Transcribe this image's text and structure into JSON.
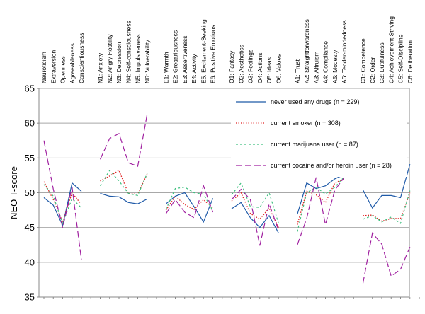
{
  "chart_data": {
    "type": "line",
    "title": "",
    "xlabel": "",
    "ylabel": "NEO T-score",
    "ylim": [
      35,
      65
    ],
    "yticks": [
      35,
      40,
      45,
      50,
      55,
      60,
      65
    ],
    "grid": "horizontal",
    "legend_position": "right",
    "groups": [
      {
        "name": "domains",
        "categories": [
          "Neuroticism",
          "Extraversion",
          "Openness",
          "Agreeableness",
          "Conscientiousness"
        ]
      },
      {
        "name": "neuroticism",
        "categories": [
          "N1: Anxiety",
          "N2: Angry Hostility",
          "N3: Depression",
          "N4: Self-consciousness",
          "N5: Impulsiveness",
          "N6: Vulnerability"
        ]
      },
      {
        "name": "extraversion",
        "categories": [
          "E1: Warmth",
          "E2: Gregariousness",
          "E3: Assertiveness",
          "E4: Activity",
          "E5: Excitement-Seeking",
          "E6: Positive Emotions"
        ]
      },
      {
        "name": "openness",
        "categories": [
          "O1: Fantasy",
          "O2: Aesthetics",
          "O3: Feelings",
          "O4: Actions",
          "O5: Ideas",
          "O6: Values"
        ]
      },
      {
        "name": "agreeableness",
        "categories": [
          "A1: Trust",
          "A2: Straightforwardness",
          "A3: Altruism",
          "A4: Compliance",
          "A5: Modesty",
          "A6: Tender-mindedness"
        ]
      },
      {
        "name": "conscientiousness",
        "categories": [
          "C1: Competence",
          "C2: Order",
          "C3: Dutifulness",
          "C4: Achievement Striving",
          "C5: Self-Discipline",
          "C6: Deliberation"
        ]
      }
    ],
    "series": [
      {
        "name": "never used any drugs (n = 229)",
        "color": "#1f5aa8",
        "dash": "solid",
        "values": [
          [
            49.3,
            48.2,
            45.3,
            51.4,
            50.2
          ],
          [
            49.9,
            49.5,
            49.4,
            48.6,
            48.4,
            49.1
          ],
          [
            48.4,
            49.5,
            50.0,
            48.0,
            45.8,
            49.2
          ],
          [
            47.7,
            48.6,
            46.4,
            45.0,
            46.7,
            44.2
          ],
          [
            46.9,
            51.4,
            50.6,
            51.0,
            52.0,
            52.6
          ],
          [
            50.4,
            47.8,
            49.6,
            49.6,
            49.3,
            54.1
          ]
        ]
      },
      {
        "name": "current smoker (n = 308)",
        "color": "#e02020",
        "dash": "dotted",
        "values": [
          [
            51.6,
            49.0,
            45.8,
            50.0,
            48.3
          ],
          [
            51.7,
            52.4,
            53.2,
            49.9,
            49.8,
            52.7
          ],
          [
            47.5,
            49.5,
            48.3,
            47.6,
            49.0,
            47.8
          ],
          [
            48.8,
            50.0,
            47.0,
            46.2,
            47.8,
            45.0
          ],
          [
            45.4,
            50.2,
            49.7,
            48.6,
            51.4,
            52.0
          ],
          [
            46.7,
            46.8,
            45.9,
            46.3,
            46.3,
            50.0
          ]
        ]
      },
      {
        "name": "current marijuana user (n = 87)",
        "color": "#40c080",
        "dash": "dashed",
        "values": [
          [
            51.2,
            49.5,
            45.6,
            49.2,
            47.8
          ],
          [
            51.0,
            53.2,
            51.7,
            49.9,
            49.6,
            52.8
          ],
          [
            47.6,
            50.6,
            50.8,
            50.0,
            49.8,
            47.4
          ],
          [
            49.7,
            51.4,
            48.0,
            47.9,
            50.0,
            45.6
          ],
          [
            44.4,
            50.0,
            50.8,
            49.8,
            50.8,
            52.3
          ],
          [
            46.2,
            46.7,
            45.8,
            46.5,
            45.6,
            50.3
          ]
        ]
      },
      {
        "name": "current cocaine and/or heroin user (n = 28)",
        "color": "#a020a0",
        "dash": "longdash",
        "values": [
          [
            57.5,
            50.5,
            45.0,
            50.8,
            40.3
          ],
          [
            54.8,
            57.8,
            58.5,
            54.3,
            53.8,
            61.3
          ],
          [
            47.0,
            49.0,
            47.2,
            46.4,
            51.0,
            47.2
          ],
          [
            49.0,
            50.5,
            49.0,
            42.4,
            48.4,
            44.6
          ],
          [
            42.5,
            46.3,
            52.2,
            45.4,
            50.4,
            52.2
          ],
          [
            37.0,
            44.2,
            42.6,
            38.0,
            39.0,
            42.2
          ]
        ]
      }
    ]
  }
}
